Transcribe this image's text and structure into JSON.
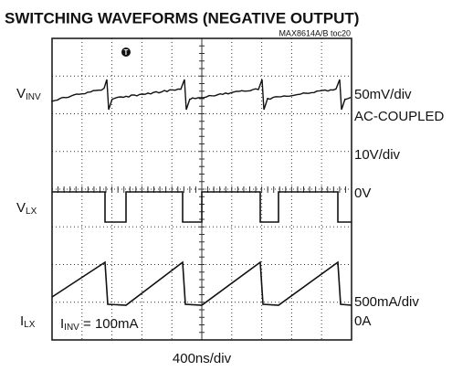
{
  "header": {
    "title": "SWITCHING WAVEFORMS (NEGATIVE OUTPUT)",
    "code": "MAX8614A/B toc20"
  },
  "trigger": "T",
  "left_labels": [
    {
      "main": "V",
      "sub": "INV"
    },
    {
      "main": "V",
      "sub": "LX"
    },
    {
      "main": "I",
      "sub": "LX"
    }
  ],
  "right_labels": [
    "50mV/div",
    "AC-COUPLED",
    "10V/div",
    "0V",
    "500mA/div",
    "0A"
  ],
  "note": {
    "main": "I",
    "sub": "INV",
    "rest": " = 100mA"
  },
  "timebase": "400ns/div"
}
